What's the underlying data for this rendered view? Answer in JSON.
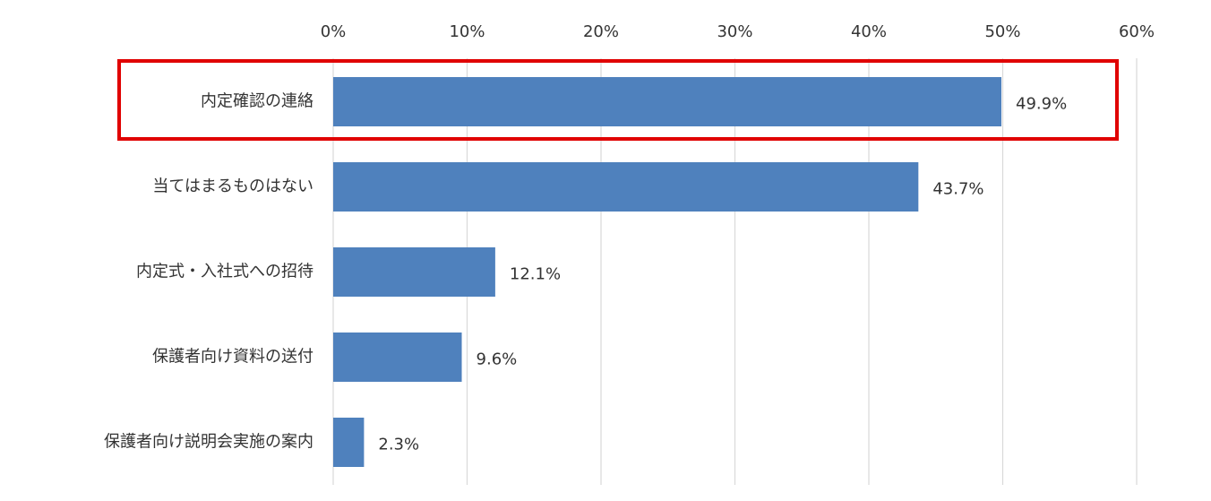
{
  "chart_data": {
    "type": "hbar",
    "categories": [
      "内定確認の連絡",
      "当てはまるものはない",
      "内定式・入社式への招待",
      "保護者向け資料の送付",
      "保護者向け説明会実施の案内"
    ],
    "values": [
      49.9,
      43.7,
      12.1,
      9.6,
      2.3
    ],
    "value_labels": [
      "49.9%",
      "43.7%",
      "12.1%",
      "9.6%",
      "2.3%"
    ],
    "color": "#4f81bd",
    "xlim": [
      0,
      60
    ],
    "xticks": [
      {
        "value": 0,
        "label": "0%"
      },
      {
        "value": 10,
        "label": "10%"
      },
      {
        "value": 20,
        "label": "20%"
      },
      {
        "value": 30,
        "label": "30%"
      },
      {
        "value": 40,
        "label": "40%"
      },
      {
        "value": 50,
        "label": "50%"
      },
      {
        "value": 60,
        "label": "60%"
      }
    ],
    "grid": true
  }
}
